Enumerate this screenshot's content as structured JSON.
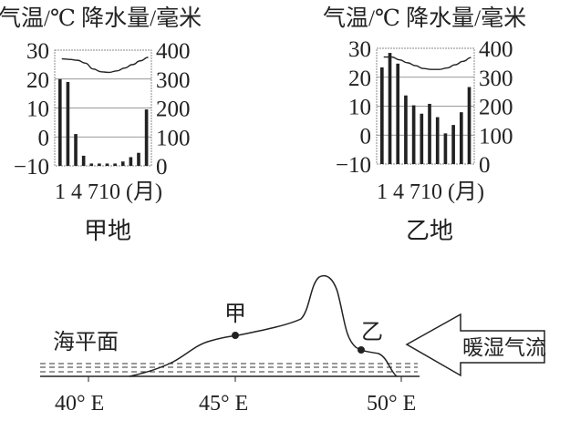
{
  "charts_title": "气温/℃ 降水量/毫米",
  "chart_data": [
    {
      "type": "bar+line",
      "title": "气温/℃ 降水量/毫米",
      "caption": "甲地",
      "x_ticks": "1 4 710 (月)",
      "months": [
        1,
        2,
        3,
        4,
        5,
        6,
        7,
        8,
        9,
        10,
        11,
        12
      ],
      "left_axis": {
        "label": "气温/℃",
        "ticks": [
          "30",
          "20",
          "10",
          "0",
          "−10"
        ],
        "range": [
          -10,
          30
        ]
      },
      "right_axis": {
        "label": "降水量/毫米",
        "ticks": [
          "400",
          "300",
          "200",
          "100",
          "0"
        ],
        "range": [
          0,
          400
        ]
      },
      "precipitation": [
        300,
        290,
        110,
        35,
        8,
        8,
        8,
        8,
        15,
        30,
        45,
        195
      ],
      "temperature": [
        27,
        26.8,
        26.5,
        25.5,
        23.5,
        22.5,
        22.3,
        22.8,
        23.8,
        25,
        26.3,
        27.5
      ],
      "grid": true
    },
    {
      "type": "bar+line",
      "title": "气温/℃ 降水量/毫米",
      "caption": "乙地",
      "x_ticks": "1 4 710 (月)",
      "months": [
        1,
        2,
        3,
        4,
        5,
        6,
        7,
        8,
        9,
        10,
        11,
        12
      ],
      "left_axis": {
        "label": "气温/℃",
        "ticks": [
          "30",
          "20",
          "10",
          "0",
          "−10"
        ],
        "range": [
          -10,
          30
        ]
      },
      "right_axis": {
        "label": "降水量/毫米",
        "ticks": [
          "400",
          "300",
          "200",
          "100",
          "0"
        ],
        "range": [
          0,
          400
        ]
      },
      "precipitation": [
        334,
        384,
        347,
        237,
        203,
        174,
        208,
        162,
        106,
        135,
        179,
        266
      ],
      "temperature": [
        27,
        27,
        26,
        25,
        24,
        23,
        22.7,
        22.7,
        23.2,
        24.3,
        25.5,
        26.8
      ],
      "grid": true
    }
  ],
  "profile": {
    "sea_level_label": "海平面",
    "point_jia": "甲",
    "point_yi": "乙",
    "airflow_label": "暖湿气流",
    "x_ticks": [
      "40° E",
      "45° E",
      "50° E"
    ]
  }
}
